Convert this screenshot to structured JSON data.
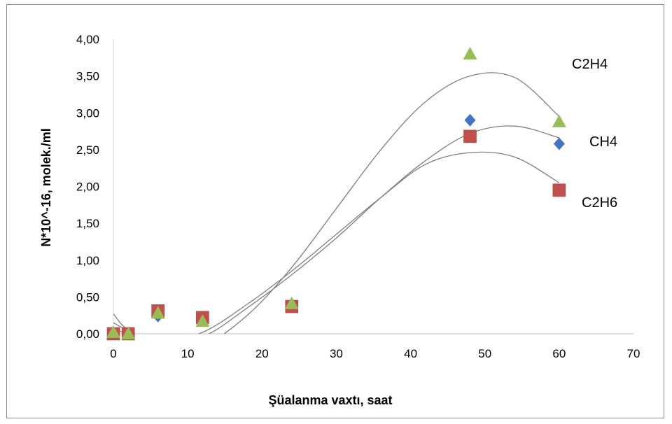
{
  "chart_data": {
    "type": "scatter",
    "xlabel": "Şüalanma vaxtı, saat",
    "ylabel": "N*10^-16, molek./ml",
    "xlim": [
      0,
      70
    ],
    "ylim": [
      0,
      4
    ],
    "x_ticks": [
      "0",
      "10",
      "20",
      "30",
      "40",
      "50",
      "60",
      "70"
    ],
    "y_ticks": [
      "0,00",
      "0,50",
      "1,00",
      "1,50",
      "2,00",
      "2,50",
      "3,00",
      "3,50",
      "4,00"
    ],
    "grid": false,
    "legend": "none",
    "series": [
      {
        "name": "CH4",
        "marker": "diamond",
        "color": "#4472c4",
        "x": [
          0,
          2,
          6,
          12,
          24,
          48,
          60
        ],
        "y": [
          0.01,
          0.0,
          0.24,
          0.19,
          0.39,
          2.9,
          2.58
        ],
        "trend": [
          [
            0,
            0.27
          ],
          [
            2,
            0.05
          ],
          [
            6,
            -0.1
          ],
          [
            12,
            -0.04
          ],
          [
            18,
            0.35
          ],
          [
            24,
            0.8
          ],
          [
            30,
            1.3
          ],
          [
            36,
            1.85
          ],
          [
            42,
            2.35
          ],
          [
            48,
            2.72
          ],
          [
            54,
            2.82
          ],
          [
            60,
            2.66
          ]
        ]
      },
      {
        "name": "C2H6",
        "marker": "square",
        "color": "#c0504d",
        "x": [
          0,
          2,
          6,
          12,
          24,
          48,
          60
        ],
        "y": [
          0.0,
          0.0,
          0.31,
          0.22,
          0.37,
          2.68,
          1.95
        ],
        "trend": [
          [
            0,
            0.15
          ],
          [
            2,
            0.04
          ],
          [
            6,
            -0.12
          ],
          [
            12,
            0.02
          ],
          [
            18,
            0.4
          ],
          [
            24,
            0.85
          ],
          [
            30,
            1.35
          ],
          [
            36,
            1.85
          ],
          [
            42,
            2.3
          ],
          [
            48,
            2.46
          ],
          [
            54,
            2.4
          ],
          [
            60,
            2.05
          ]
        ]
      },
      {
        "name": "C2H4",
        "marker": "triangle",
        "color": "#9bbb59",
        "x": [
          0,
          2,
          6,
          12,
          24,
          48,
          60
        ],
        "y": [
          0.02,
          0.0,
          0.28,
          0.17,
          0.41,
          3.8,
          2.88
        ],
        "trend": [
          [
            0,
            0.07
          ],
          [
            2,
            0.0
          ],
          [
            6,
            -0.1
          ],
          [
            12,
            -0.15
          ],
          [
            18,
            0.25
          ],
          [
            24,
            0.9
          ],
          [
            30,
            1.7
          ],
          [
            36,
            2.5
          ],
          [
            42,
            3.15
          ],
          [
            48,
            3.5
          ],
          [
            54,
            3.48
          ],
          [
            60,
            2.95
          ]
        ]
      }
    ]
  }
}
